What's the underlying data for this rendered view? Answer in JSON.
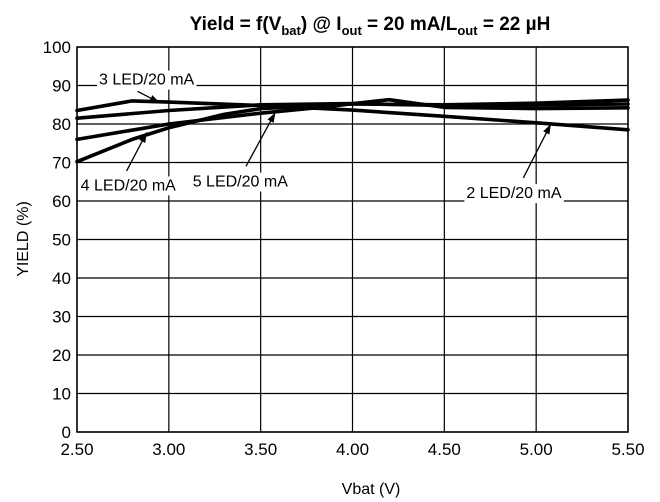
{
  "chart_data": {
    "type": "line",
    "title": {
      "parts": [
        {
          "text": "Yield = f(V",
          "sub": false
        },
        {
          "text": "bat",
          "sub": true
        },
        {
          "text": ") @ I",
          "sub": false
        },
        {
          "text": "out",
          "sub": true
        },
        {
          "text": " = 20 mA/L",
          "sub": false
        },
        {
          "text": "out",
          "sub": true
        },
        {
          "text": " = 22 µH",
          "sub": false
        }
      ]
    },
    "xlabel": "Vbat (V)",
    "ylabel": "YIELD (%)",
    "xlim": [
      2.5,
      5.5
    ],
    "ylim": [
      0,
      100
    ],
    "x_ticks": [
      "2.50",
      "3.00",
      "3.50",
      "4.00",
      "4.50",
      "5.00",
      "5.50"
    ],
    "y_ticks": [
      "0",
      "10",
      "20",
      "30",
      "40",
      "50",
      "60",
      "70",
      "80",
      "90",
      "100"
    ],
    "grid": true,
    "series": [
      {
        "name": "2 LED/20 mA",
        "x": [
          2.5,
          2.8,
          3.0,
          3.5,
          4.0,
          4.5,
          5.0,
          5.5
        ],
        "y": [
          83.5,
          86,
          85.7,
          84.8,
          83.6,
          82,
          80.3,
          78.5
        ]
      },
      {
        "name": "3 LED/20 mA",
        "x": [
          2.5,
          3.0,
          3.5,
          4.0,
          4.5,
          5.0,
          5.5
        ],
        "y": [
          81.5,
          83.5,
          85,
          85.3,
          84.8,
          84.9,
          85.2
        ]
      },
      {
        "name": "4 LED/20 mA",
        "x": [
          2.5,
          2.8,
          3.0,
          3.3,
          3.5,
          4.0,
          4.5,
          5.0,
          5.5
        ],
        "y": [
          70.2,
          76,
          79,
          82.5,
          84,
          85.2,
          85,
          85.4,
          86.2
        ]
      },
      {
        "name": "5 LED/20 mA",
        "x": [
          2.5,
          3.0,
          3.5,
          3.8,
          4.2,
          4.5,
          5.0,
          5.5
        ],
        "y": [
          76,
          80,
          82.8,
          84.2,
          86.3,
          84.3,
          84,
          84.2
        ]
      }
    ],
    "annotations": [
      {
        "text": "3 LED/20 mA",
        "x": 2.62,
        "y": 91.8,
        "point": [
          2.95,
          85.5
        ],
        "from": [
          2.83,
          88.5
        ]
      },
      {
        "text": "4 LED/20 mA",
        "x": 2.52,
        "y": 64.3,
        "point": [
          2.88,
          77.8
        ],
        "from": [
          2.77,
          67.8
        ]
      },
      {
        "text": "5 LED/20 mA",
        "x": 3.13,
        "y": 65.3,
        "point": [
          3.58,
          83.0
        ],
        "from": [
          3.42,
          69.0
        ]
      },
      {
        "text": "2 LED/20 mA",
        "x": 4.62,
        "y": 62.3,
        "point": [
          5.08,
          80.0
        ],
        "from": [
          4.93,
          66.0
        ]
      }
    ]
  }
}
